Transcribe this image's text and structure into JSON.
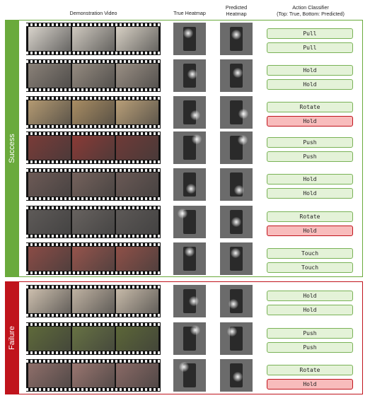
{
  "headers": {
    "demo": "Demonstration Video",
    "true_heatmap": "True Heatmap",
    "predicted_heatmap_line1": "Predicted",
    "predicted_heatmap_line2": "Heatmap",
    "action_classifier_line1": "Action Classifier",
    "action_classifier_line2": "(Top: True, Bottom: Predicted)"
  },
  "groups": {
    "success": "Success",
    "failure": "Failure"
  },
  "colors": {
    "success": "#6aaa3c",
    "failure": "#c0141c",
    "correct_fill": "#e4f2d8",
    "wrong_fill": "#f8bcbc"
  },
  "rows": [
    {
      "group": "success",
      "true": "Pull",
      "predicted": "Pull",
      "correct": true,
      "frame_colors": [
        "#d9d4cc",
        "#cfc9bf",
        "#d7d0c4"
      ]
    },
    {
      "group": "success",
      "true": "Hold",
      "predicted": "Hold",
      "correct": true,
      "frame_colors": [
        "#8a8178",
        "#958b80",
        "#9a8f84"
      ]
    },
    {
      "group": "success",
      "true": "Rotate",
      "predicted": "Hold",
      "correct": false,
      "frame_colors": [
        "#b49a72",
        "#a98d63",
        "#b99f78"
      ]
    },
    {
      "group": "success",
      "true": "Push",
      "predicted": "Push",
      "correct": true,
      "frame_colors": [
        "#7a3b38",
        "#8a3a36",
        "#6f3a37"
      ]
    },
    {
      "group": "success",
      "true": "Hold",
      "predicted": "Hold",
      "correct": true,
      "frame_colors": [
        "#6d5a56",
        "#75625c",
        "#6a5955"
      ]
    },
    {
      "group": "success",
      "true": "Rotate",
      "predicted": "Hold",
      "correct": false,
      "frame_colors": [
        "#5e5a58",
        "#67625f",
        "#5c5856"
      ]
    },
    {
      "group": "success",
      "true": "Touch",
      "predicted": "Touch",
      "correct": true,
      "frame_colors": [
        "#8b4c46",
        "#96544c",
        "#8f5048"
      ]
    },
    {
      "group": "failure",
      "true": "Hold",
      "predicted": "Hold",
      "correct": true,
      "frame_colors": [
        "#cdbfae",
        "#bfb2a2",
        "#c7baa9"
      ]
    },
    {
      "group": "failure",
      "true": "Push",
      "predicted": "Push",
      "correct": true,
      "frame_colors": [
        "#5f6a3a",
        "#677243",
        "#5c6638"
      ]
    },
    {
      "group": "failure",
      "true": "Rotate",
      "predicted": "Hold",
      "correct": false,
      "frame_colors": [
        "#8f6f6a",
        "#9a7670",
        "#8a6a66"
      ]
    }
  ]
}
